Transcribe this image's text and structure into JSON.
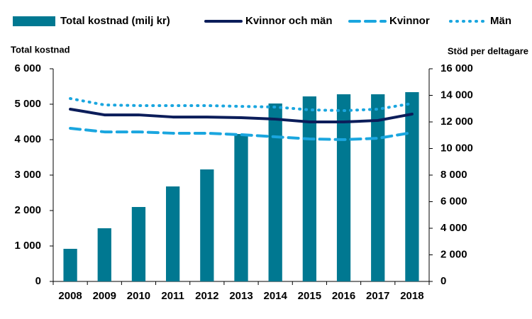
{
  "chart_data": {
    "type": "bar",
    "categories": [
      "2008",
      "2009",
      "2010",
      "2011",
      "2012",
      "2013",
      "2014",
      "2015",
      "2016",
      "2017",
      "2018"
    ],
    "y_label": "Total kostnad",
    "y2_label": "Stöd per deltagare",
    "series": [
      {
        "name": "Total kostnad (milj kr)",
        "type": "bar",
        "color": "#007891",
        "axis": "y",
        "values": [
          920,
          1500,
          2100,
          2680,
          3160,
          4160,
          5020,
          5220,
          5280,
          5280,
          5340
        ]
      },
      {
        "name": "Kvinnor och män",
        "type": "line",
        "style": "solid",
        "color": "#0b1d5a",
        "axis": "y2",
        "values": [
          12960,
          12530,
          12530,
          12370,
          12370,
          12320,
          12210,
          12000,
          12000,
          12110,
          12590
        ]
      },
      {
        "name": "Kvinnor",
        "type": "line",
        "style": "dashed",
        "color": "#1aa6df",
        "axis": "y2",
        "values": [
          11520,
          11250,
          11250,
          11150,
          11150,
          11040,
          10880,
          10720,
          10670,
          10770,
          11200
        ]
      },
      {
        "name": "Män",
        "type": "line",
        "style": "dotted",
        "color": "#1aa6df",
        "axis": "y2",
        "values": [
          13760,
          13280,
          13230,
          13230,
          13230,
          13170,
          13120,
          12910,
          12850,
          12960,
          13390
        ]
      }
    ],
    "ylim": [
      0,
      6000
    ],
    "yticks": [
      0,
      {
        "value": 1000,
        "label": "1 000"
      },
      {
        "value": 2000,
        "label": "2 000"
      },
      {
        "value": 3000,
        "label": "3 000"
      },
      {
        "value": 4000,
        "label": "4 000"
      },
      {
        "value": 5000,
        "label": "5 000"
      },
      {
        "value": 6000,
        "label": "6 000"
      }
    ],
    "y2lim": [
      0,
      16000
    ],
    "y2ticks": [
      0,
      {
        "value": 2000,
        "label": "2 000"
      },
      {
        "value": 4000,
        "label": "4 000"
      },
      {
        "value": 6000,
        "label": "6 000"
      },
      {
        "value": 8000,
        "label": "8 000"
      },
      {
        "value": 10000,
        "label": "10 000"
      },
      {
        "value": 12000,
        "label": "12 000"
      },
      {
        "value": 14000,
        "label": "14 000"
      },
      {
        "value": 16000,
        "label": "16 000"
      }
    ],
    "grid": false,
    "legend": "top"
  }
}
